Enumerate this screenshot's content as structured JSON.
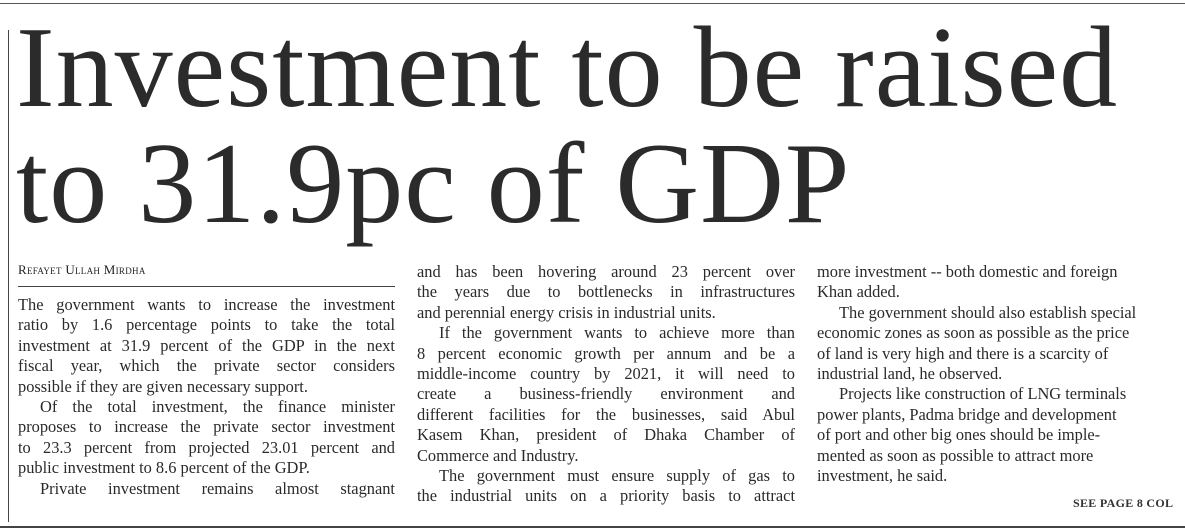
{
  "headline": {
    "line1": "Investment to be raised",
    "line2": "to 31.9pc of GDP"
  },
  "byline": "Refayet Ullah Mirdha",
  "columns": [
    {
      "lines": [
        {
          "t": "The government wants to increase the investment",
          "j": true,
          "i": false
        },
        {
          "t": "ratio by 1.6 percentage points to take the total",
          "j": true,
          "i": false
        },
        {
          "t": "investment at 31.9 percent of the GDP in the next",
          "j": true,
          "i": false
        },
        {
          "t": "fiscal year, which the private sector considers",
          "j": true,
          "i": false
        },
        {
          "t": "possible if they are given necessary support.",
          "j": false,
          "i": false
        },
        {
          "t": "Of the total investment, the finance minister",
          "j": true,
          "i": true
        },
        {
          "t": "proposes to increase the private sector investment",
          "j": true,
          "i": false
        },
        {
          "t": "to 23.3 percent from projected 23.01 percent and",
          "j": true,
          "i": false
        },
        {
          "t": "public investment to 8.6 percent of the GDP.",
          "j": false,
          "i": false
        },
        {
          "t": "Private investment remains almost stagnant",
          "j": true,
          "i": true
        }
      ]
    },
    {
      "lines": [
        {
          "t": "and has been hovering around 23 percent over",
          "j": true,
          "i": false
        },
        {
          "t": "the years due to bottlenecks in infrastructures",
          "j": true,
          "i": false
        },
        {
          "t": "and perennial energy crisis in industrial units.",
          "j": false,
          "i": false
        },
        {
          "t": "If the government wants to achieve more than",
          "j": true,
          "i": true
        },
        {
          "t": "8 percent economic growth per annum and be a",
          "j": true,
          "i": false
        },
        {
          "t": "middle-income country by 2021, it will need to",
          "j": true,
          "i": false
        },
        {
          "t": "create a business-friendly environment and",
          "j": true,
          "i": false
        },
        {
          "t": "different facilities for the businesses, said Abul",
          "j": true,
          "i": false
        },
        {
          "t": "Kasem Khan, president of Dhaka Chamber of",
          "j": true,
          "i": false
        },
        {
          "t": "Commerce and Industry.",
          "j": false,
          "i": false
        },
        {
          "t": "The government must ensure supply of gas to",
          "j": true,
          "i": true
        },
        {
          "t": "the industrial units on a priority basis to attract",
          "j": true,
          "i": false
        }
      ]
    },
    {
      "lines": [
        {
          "t": "more investment -- both domestic and foreign",
          "j": false,
          "i": false
        },
        {
          "t": "Khan added.",
          "j": false,
          "i": false
        },
        {
          "t": "The government should also establish special",
          "j": false,
          "i": true
        },
        {
          "t": "economic zones as soon as possible as the price",
          "j": false,
          "i": false
        },
        {
          "t": "of land is very high and there is a scarcity of",
          "j": false,
          "i": false
        },
        {
          "t": "industrial land, he observed.",
          "j": false,
          "i": false
        },
        {
          "t": "Projects like construction of LNG terminals",
          "j": false,
          "i": true
        },
        {
          "t": "power plants, Padma bridge and development",
          "j": false,
          "i": false
        },
        {
          "t": "of port and other big ones should be imple-",
          "j": false,
          "i": false
        },
        {
          "t": "mented as soon as possible to attract more",
          "j": false,
          "i": false
        },
        {
          "t": "investment, he said.",
          "j": false,
          "i": false
        }
      ]
    }
  ],
  "jump": "SEE PAGE 8 COL"
}
